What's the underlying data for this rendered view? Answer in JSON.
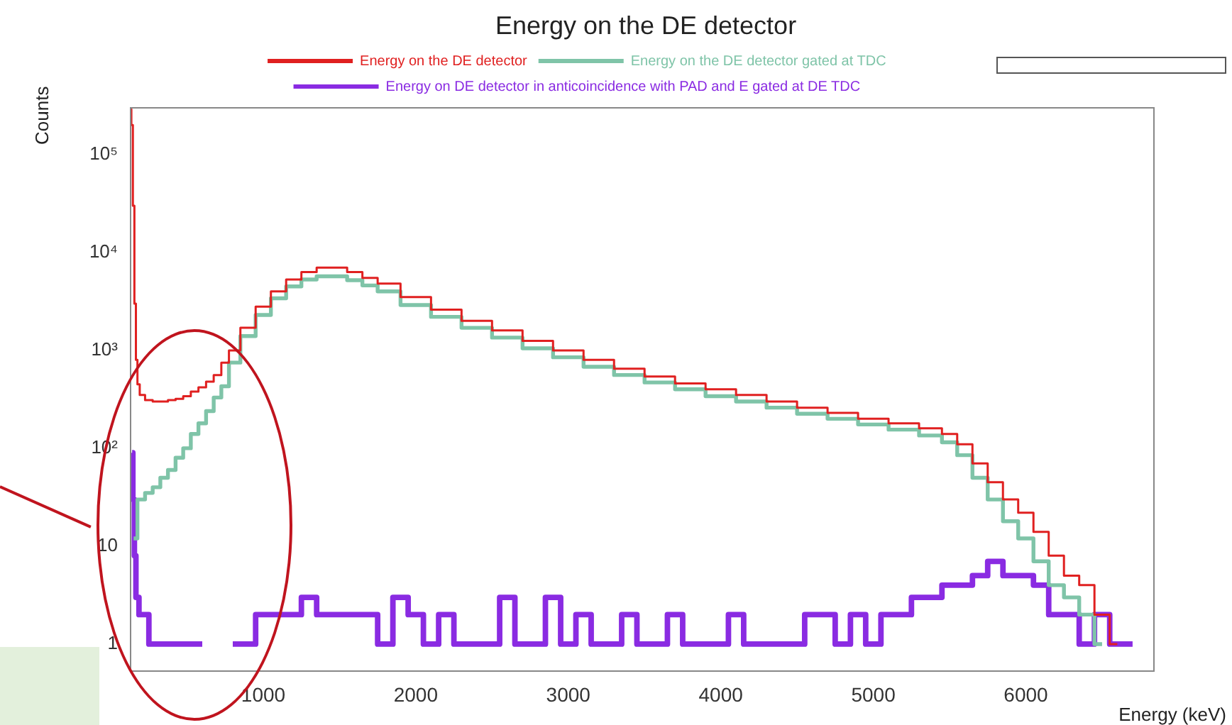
{
  "chart_data": {
    "type": "step",
    "title": "Energy on the DE detector",
    "xlabel": "Energy (keV)",
    "ylabel": "Counts",
    "log": "y",
    "grid": false,
    "legend": "top",
    "xlim": [
      130,
      6840
    ],
    "xticks": [
      1000,
      2000,
      3000,
      4000,
      5000,
      6000
    ],
    "ylim": [
      0.53,
      300000
    ],
    "yticks": [
      {
        "value": 1,
        "label": "1"
      },
      10,
      {
        "value": 100,
        "label": "10²"
      },
      {
        "value": 1000,
        "label": "10³"
      },
      {
        "value": 10000,
        "label": "10⁴"
      },
      {
        "value": 100000,
        "label": "10⁵"
      }
    ],
    "series": [
      {
        "name": "Energy on the DE detector",
        "color": "#e02020",
        "x": [
          130,
          140,
          150,
          160,
          170,
          180,
          200,
          250,
          300,
          350,
          400,
          450,
          500,
          550,
          600,
          650,
          700,
          750,
          800,
          900,
          1000,
          1100,
          1200,
          1300,
          1400,
          1500,
          1600,
          1700,
          1800,
          2000,
          2200,
          2400,
          2600,
          2800,
          3000,
          3200,
          3400,
          3600,
          3800,
          4000,
          4200,
          4400,
          4600,
          4800,
          5000,
          5200,
          5400,
          5500,
          5600,
          5700,
          5800,
          5900,
          6000,
          6100,
          6200,
          6300,
          6400,
          6500,
          6600
        ],
        "values": [
          290000,
          200000,
          30000,
          3000,
          800,
          450,
          350,
          310,
          300,
          300,
          310,
          320,
          340,
          380,
          420,
          480,
          560,
          750,
          1000,
          1700,
          2800,
          4000,
          5300,
          6300,
          7000,
          7000,
          6300,
          5500,
          4800,
          3500,
          2600,
          2000,
          1600,
          1250,
          1000,
          800,
          650,
          540,
          460,
          400,
          350,
          300,
          260,
          230,
          200,
          180,
          160,
          140,
          110,
          70,
          45,
          30,
          22,
          14,
          8,
          5,
          4,
          2,
          1
        ]
      },
      {
        "name": "Energy on the DE detector gated at TDC",
        "color": "#7fc4a8",
        "x": [
          150,
          200,
          250,
          300,
          350,
          400,
          450,
          500,
          550,
          600,
          650,
          700,
          750,
          800,
          900,
          1000,
          1100,
          1200,
          1300,
          1400,
          1500,
          1600,
          1700,
          1800,
          2000,
          2200,
          2400,
          2600,
          2800,
          3000,
          3200,
          3400,
          3600,
          3800,
          4000,
          4200,
          4400,
          4600,
          4800,
          5000,
          5200,
          5400,
          5500,
          5600,
          5700,
          5800,
          5900,
          6000,
          6100,
          6200,
          6300,
          6400,
          6500
        ],
        "values": [
          12,
          30,
          35,
          40,
          50,
          60,
          80,
          100,
          140,
          180,
          240,
          330,
          430,
          750,
          1400,
          2300,
          3400,
          4500,
          5300,
          5700,
          5700,
          5200,
          4600,
          4000,
          2900,
          2200,
          1700,
          1350,
          1050,
          850,
          680,
          560,
          470,
          400,
          340,
          300,
          260,
          225,
          200,
          175,
          155,
          135,
          115,
          85,
          50,
          30,
          18,
          12,
          7,
          4,
          3,
          2,
          1
        ]
      },
      {
        "name": "Energy on DE detector in anticoincidence with PAD and E gated at DE TDC",
        "color": "#8a2be2",
        "x": [
          140,
          150,
          160,
          170,
          200,
          300,
          400,
          500,
          600,
          700,
          800,
          900,
          1000,
          1100,
          1200,
          1300,
          1400,
          1500,
          1600,
          1700,
          1800,
          1900,
          2000,
          2100,
          2200,
          2300,
          2400,
          2500,
          2600,
          2700,
          2800,
          2900,
          3000,
          3100,
          3200,
          3300,
          3400,
          3500,
          3600,
          3700,
          3800,
          3900,
          4000,
          4100,
          4200,
          4300,
          4400,
          4500,
          4600,
          4700,
          4800,
          4900,
          5000,
          5100,
          5200,
          5300,
          5400,
          5500,
          5600,
          5700,
          5800,
          5900,
          6000,
          6100,
          6200,
          6300,
          6400,
          6500,
          6600,
          6700
        ],
        "values": [
          90,
          30,
          8,
          3,
          2,
          1,
          1,
          1,
          1,
          null,
          1,
          1,
          2,
          2,
          2,
          3,
          2,
          2,
          2,
          2,
          1,
          3,
          2,
          1,
          2,
          1,
          1,
          1,
          3,
          1,
          1,
          3,
          1,
          2,
          1,
          1,
          2,
          1,
          1,
          2,
          1,
          1,
          1,
          2,
          1,
          1,
          1,
          1,
          2,
          2,
          1,
          2,
          1,
          2,
          2,
          3,
          3,
          4,
          4,
          5,
          7,
          5,
          5,
          4,
          2,
          2,
          1,
          2,
          1,
          1
        ]
      }
    ]
  }
}
